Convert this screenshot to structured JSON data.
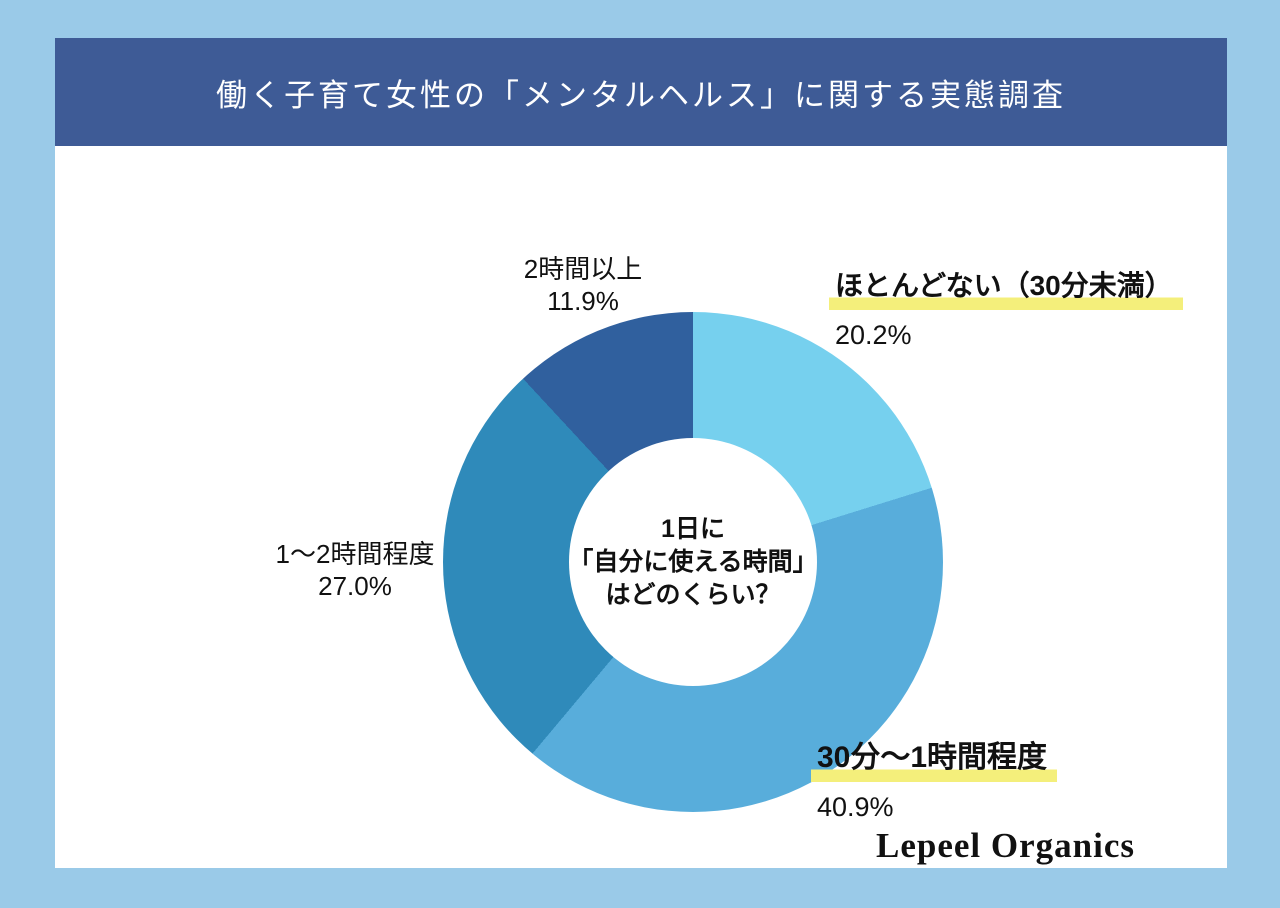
{
  "page": {
    "background_color": "#9ACAE8",
    "card_background": "#FFFFFF"
  },
  "header": {
    "title": "働く子育て女性の「メンタルヘルス」に関する実態調査",
    "background_color": "#3E5B96",
    "text_color": "#FFFFFF"
  },
  "chart_data": {
    "type": "pie",
    "subtype": "donut",
    "title": "1日に「自分に使える時間」はどのくらい？",
    "start_angle_deg": 0,
    "direction": "clockwise",
    "categories": [
      "ほとんどない（30分未満）",
      "30分〜1時間程度",
      "1〜2時間程度",
      "2時間以上"
    ],
    "values": [
      20.2,
      40.9,
      27.0,
      11.9
    ],
    "segments": [
      {
        "label": "ほとんどない（30分未満）",
        "value": 20.2,
        "pct_label": "20.2%",
        "color": "#76D0EE",
        "highlighted": true
      },
      {
        "label": "30分〜1時間程度",
        "value": 40.9,
        "pct_label": "40.9%",
        "color": "#58ADDB",
        "highlighted": true
      },
      {
        "label": "1〜2時間程度",
        "value": 27.0,
        "pct_label": "27.0%",
        "color": "#2F8ABA",
        "highlighted": false
      },
      {
        "label": "2時間以上",
        "value": 11.9,
        "pct_label": "11.9%",
        "color": "#30609E",
        "highlighted": false
      }
    ],
    "center_label_lines": [
      "1日に",
      "「自分に使える時間」",
      "はどのくらい？"
    ],
    "highlight_color": "#F4EF7B",
    "legend_position": "callouts"
  },
  "footer": {
    "brand": "Lepeel Organics"
  }
}
